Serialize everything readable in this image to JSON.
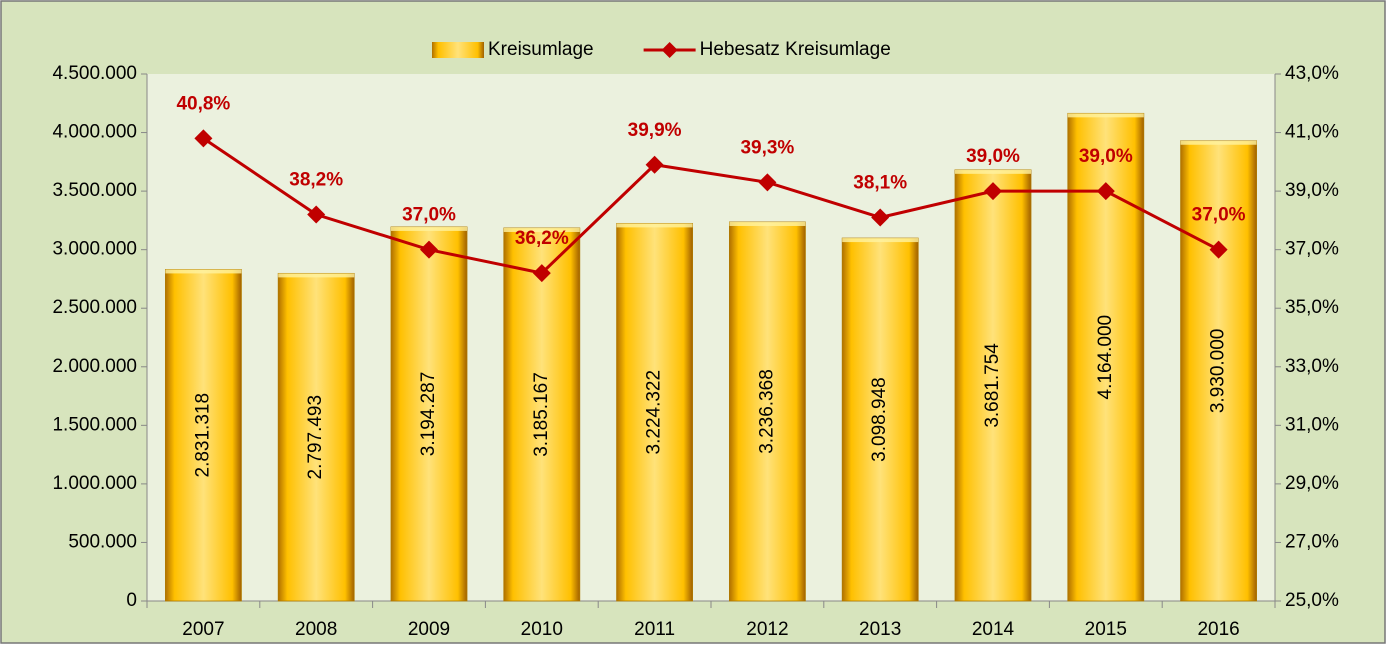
{
  "chart_data": {
    "type": "bar",
    "categories": [
      "2007",
      "2008",
      "2009",
      "2010",
      "2011",
      "2012",
      "2013",
      "2014",
      "2015",
      "2016"
    ],
    "series": [
      {
        "name": "Kreisumlage",
        "type": "bar",
        "color": "#ffc000",
        "values": [
          2831318,
          2797493,
          3194287,
          3185167,
          3224322,
          3236368,
          3098948,
          3681754,
          4164000,
          3930000
        ],
        "value_labels": [
          "2.831.318",
          "2.797.493",
          "3.194.287",
          "3.185.167",
          "3.224.322",
          "3.236.368",
          "3.098.948",
          "3.681.754",
          "4.164.000",
          "3.930.000"
        ]
      },
      {
        "name": "Hebesatz Kreisumlage",
        "type": "line",
        "axis": "y2",
        "color": "#c00000",
        "values": [
          40.8,
          38.2,
          37.0,
          36.2,
          39.9,
          39.3,
          38.1,
          39.0,
          39.0,
          37.0
        ],
        "value_labels": [
          "40,8%",
          "38,2%",
          "37,0%",
          "36,2%",
          "39,9%",
          "39,3%",
          "38,1%",
          "39,0%",
          "39,0%",
          "37,0%"
        ]
      }
    ],
    "ylim": [
      0,
      4500000
    ],
    "yticks": [
      0,
      {
        "value": 500000,
        "label": "500.000"
      },
      {
        "value": 1000000,
        "label": "1.000.000"
      },
      {
        "value": 1500000,
        "label": "1.500.000"
      },
      {
        "value": 2000000,
        "label": "2.000.000"
      },
      {
        "value": 2500000,
        "label": "2.500.000"
      },
      {
        "value": 3000000,
        "label": "3.000.000"
      },
      {
        "value": 3500000,
        "label": "3.500.000"
      },
      {
        "value": 4000000,
        "label": "4.000.000"
      },
      {
        "value": 4500000,
        "label": "4.500.000"
      }
    ],
    "y2lim": [
      25,
      43
    ],
    "y2ticks": [
      {
        "value": 25,
        "label": "25,0%"
      },
      {
        "value": 27,
        "label": "27,0%"
      },
      {
        "value": 29,
        "label": "29,0%"
      },
      {
        "value": 31,
        "label": "31,0%"
      },
      {
        "value": 33,
        "label": "33,0%"
      },
      {
        "value": 35,
        "label": "35,0%"
      },
      {
        "value": 37,
        "label": "37,0%"
      },
      {
        "value": 39,
        "label": "39,0%"
      },
      {
        "value": 41,
        "label": "41,0%"
      },
      {
        "value": 43,
        "label": "43,0%"
      }
    ],
    "legend": "top"
  }
}
